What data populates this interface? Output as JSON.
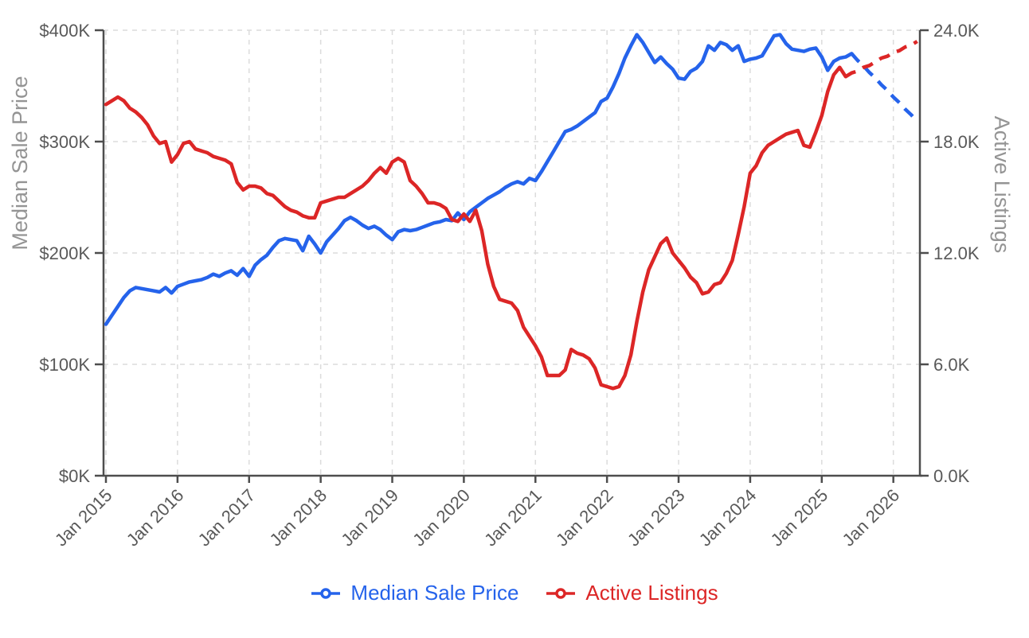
{
  "chart_data": {
    "type": "line",
    "title": "",
    "x_axis": {
      "tick_labels": [
        "Jan 2015",
        "Jan 2016",
        "Jan 2017",
        "Jan 2018",
        "Jan 2019",
        "Jan 2020",
        "Jan 2021",
        "Jan 2022",
        "Jan 2023",
        "Jan 2024",
        "Jan 2025",
        "Jan 2026"
      ],
      "interval": "month",
      "label_rotation_deg": -45
    },
    "y_axis_left": {
      "label": "Median Sale Price",
      "tick_labels": [
        "$0K",
        "$100K",
        "$200K",
        "$300K",
        "$400K"
      ],
      "range_dollars": [
        0,
        400000
      ]
    },
    "y_axis_right": {
      "label": "Active Listings",
      "tick_labels": [
        "0.0K",
        "6.0K",
        "12.0K",
        "18.0K",
        "24.0K"
      ],
      "range_listings": [
        0,
        24000
      ]
    },
    "grid": "dashed",
    "legend_position": "bottom",
    "series": [
      {
        "name": "Median Sale Price",
        "axis": "left",
        "color": "#2563eb",
        "unit": "thousand dollars",
        "start": "Jan 2015",
        "values": [
          136,
          144,
          152,
          160,
          166,
          169,
          168,
          167,
          166,
          165,
          169,
          164,
          170,
          172,
          174,
          175,
          176,
          178,
          181,
          179,
          182,
          184,
          180,
          186,
          179,
          189,
          194,
          198,
          205,
          211,
          213,
          212,
          211,
          202,
          215,
          208,
          200,
          210,
          216,
          222,
          229,
          232,
          229,
          225,
          222,
          224,
          221,
          216,
          212,
          219,
          221,
          220,
          221,
          223,
          225,
          227,
          228,
          230,
          229,
          236,
          230,
          237,
          241,
          245,
          249,
          252,
          255,
          259,
          262,
          264,
          262,
          267,
          265,
          273,
          282,
          291,
          300,
          309,
          311,
          314,
          318,
          322,
          326,
          336,
          339,
          349,
          361,
          375,
          386,
          396,
          389,
          380,
          371,
          376,
          370,
          365,
          357,
          356,
          363,
          366,
          372,
          386,
          382,
          389,
          387,
          382,
          386,
          372,
          374,
          375,
          377,
          386,
          395,
          396,
          388,
          383,
          382,
          381,
          383,
          384,
          376,
          364,
          372,
          375,
          376,
          379
        ],
        "forecast_style": "dashed",
        "forecast_start": "Jun 2025",
        "forecast_values": [
          379,
          373,
          368,
          362,
          357,
          351,
          346,
          340,
          335,
          329,
          324,
          318
        ]
      },
      {
        "name": "Active Listings",
        "axis": "right",
        "color": "#dc2626",
        "unit": "thousand listings",
        "start": "Jan 2015",
        "values": [
          20.0,
          20.2,
          20.4,
          20.2,
          19.8,
          19.6,
          19.3,
          18.9,
          18.3,
          17.9,
          18.0,
          16.9,
          17.3,
          17.9,
          18.0,
          17.6,
          17.5,
          17.4,
          17.2,
          17.1,
          17.0,
          16.8,
          15.8,
          15.4,
          15.6,
          15.6,
          15.5,
          15.2,
          15.1,
          14.8,
          14.5,
          14.3,
          14.2,
          14.0,
          13.9,
          13.9,
          14.7,
          14.8,
          14.9,
          15.0,
          15.0,
          15.2,
          15.4,
          15.6,
          15.9,
          16.3,
          16.6,
          16.3,
          16.9,
          17.1,
          16.9,
          15.9,
          15.6,
          15.2,
          14.7,
          14.7,
          14.6,
          14.4,
          13.8,
          13.7,
          14.1,
          13.7,
          14.3,
          13.2,
          11.4,
          10.2,
          9.5,
          9.4,
          9.3,
          8.9,
          8.0,
          7.5,
          7.0,
          6.4,
          5.4,
          5.4,
          5.4,
          5.7,
          6.8,
          6.6,
          6.5,
          6.3,
          5.8,
          4.9,
          4.8,
          4.7,
          4.8,
          5.4,
          6.5,
          8.3,
          9.9,
          11.1,
          11.8,
          12.5,
          12.8,
          12.0,
          11.6,
          11.2,
          10.7,
          10.4,
          9.8,
          9.9,
          10.3,
          10.4,
          10.9,
          11.6,
          13.0,
          14.5,
          16.3,
          16.7,
          17.4,
          17.8,
          18.0,
          18.2,
          18.4,
          18.5,
          18.6,
          17.8,
          17.7,
          18.5,
          19.4,
          20.7,
          21.6,
          22.0,
          21.5
        ],
        "forecast_style": "dashed",
        "forecast_start": "May 2025",
        "forecast_values": [
          21.5,
          21.7,
          21.8,
          22.0,
          22.1,
          22.3,
          22.5,
          22.6,
          22.8,
          22.9,
          23.1,
          23.2,
          23.4
        ]
      }
    ],
    "legend": {
      "items": [
        {
          "label": "Median Sale Price",
          "color": "#2563eb"
        },
        {
          "label": "Active Listings",
          "color": "#dc2626"
        }
      ]
    }
  },
  "style_colors": {
    "grid": "#dcdcdc",
    "axis_line": "#4d4d4d",
    "tick_label": "#595959",
    "axis_title": "#949494",
    "background": "#ffffff"
  }
}
